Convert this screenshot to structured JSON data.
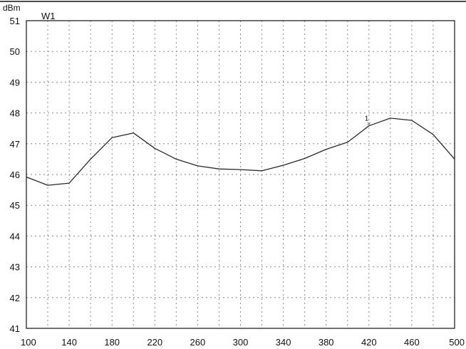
{
  "chart_data": {
    "type": "line",
    "title": "",
    "ylabel": "dBm",
    "xlabel": "",
    "trace_label": "W1",
    "xlim": [
      100,
      500
    ],
    "ylim": [
      41,
      51
    ],
    "x_ticks": [
      100,
      140,
      180,
      220,
      260,
      300,
      340,
      380,
      420,
      460,
      500
    ],
    "x_tick_labels": [
      "100",
      "140",
      "180",
      "220",
      "260",
      "300",
      "340",
      "380",
      "420",
      "460",
      "500"
    ],
    "x_grid": [
      120,
      140,
      160,
      180,
      200,
      220,
      240,
      260,
      280,
      300,
      320,
      340,
      360,
      380,
      400,
      420,
      440,
      460,
      480
    ],
    "y_ticks": [
      41,
      42,
      43,
      44,
      45,
      46,
      47,
      48,
      49,
      50,
      51
    ],
    "y_tick_labels": [
      "41",
      "42",
      "43",
      "44",
      "45",
      "46",
      "47",
      "48",
      "49",
      "50",
      "51"
    ],
    "grid": true,
    "series": [
      {
        "x": [
          100,
          120,
          140,
          160,
          180,
          200,
          220,
          240,
          260,
          280,
          300,
          320,
          340,
          360,
          380,
          400,
          420,
          440,
          460,
          480,
          500
        ],
        "y": [
          45.92,
          45.65,
          45.72,
          46.5,
          47.2,
          47.35,
          46.85,
          46.5,
          46.28,
          46.18,
          46.16,
          46.12,
          46.3,
          46.52,
          46.82,
          47.05,
          47.58,
          47.83,
          47.76,
          47.3,
          46.5
        ]
      }
    ],
    "markers": [
      {
        "label": "1",
        "x": 420,
        "y": 47.65
      }
    ]
  }
}
